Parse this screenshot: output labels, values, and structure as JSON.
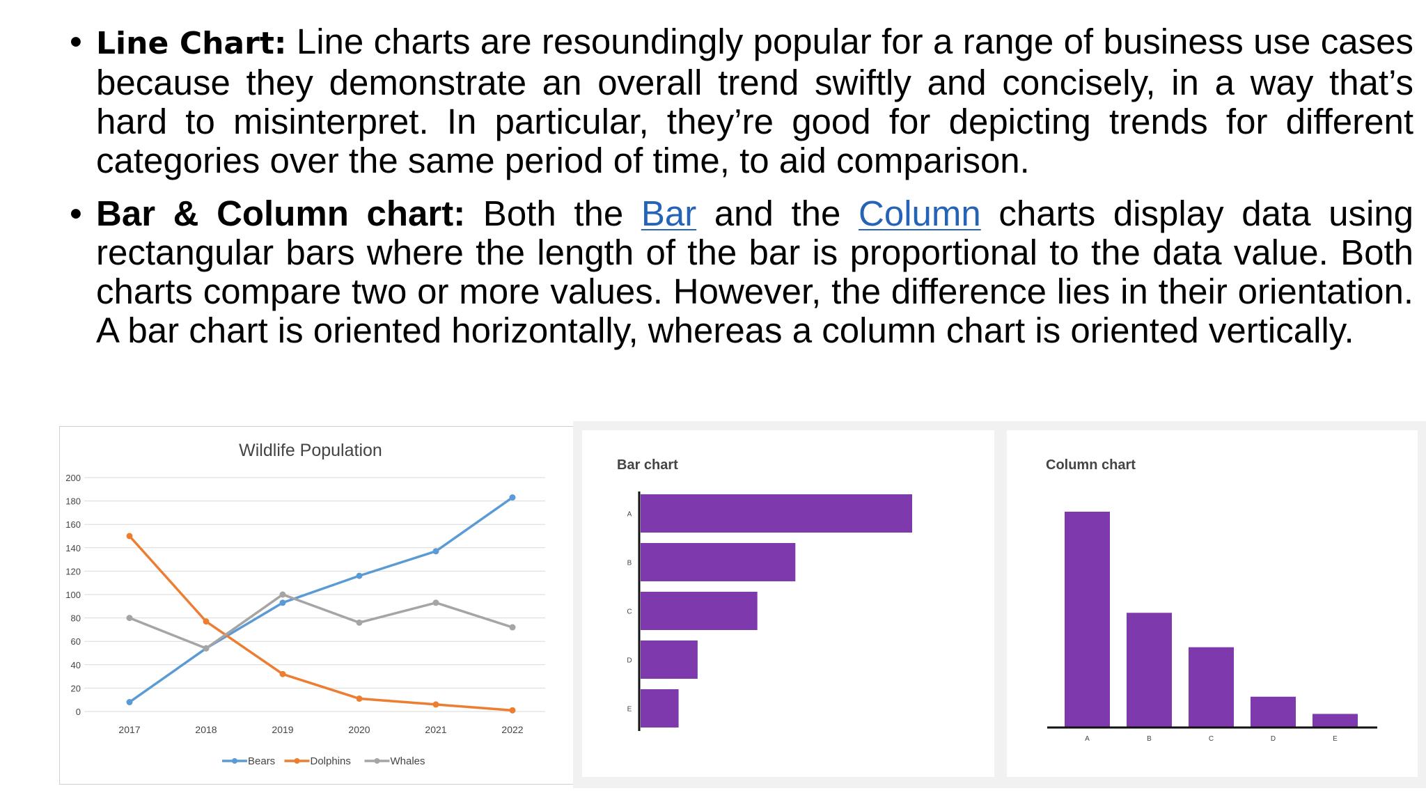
{
  "bullets": [
    {
      "term": "Line Chart:",
      "text": "Line charts are resoundingly popular for a range of business use cases because they demonstrate an overall trend swiftly and concisely, in a way that’s hard to misinterpret. In particular, they’re good for depicting trends for different categories over the same period of time, to aid comparison."
    },
    {
      "term": "Bar & Column chart:",
      "text_before": "Both the",
      "link_bar": "Bar",
      "text_middle": "and the",
      "link_column": "Column",
      "text_after": "charts display data using rectangular bars where the length of the bar is proportional to the data value. Both charts compare two or more values. However, the difference lies in their orientation. A bar chart is oriented horizontally, whereas a column chart is oriented vertically."
    }
  ],
  "bullet_symbol": "•",
  "colors": {
    "bears": "#5b9bd5",
    "dolphins": "#ed7d31",
    "whales": "#a5a5a5",
    "purple": "#7e3aad",
    "link": "#2563b8"
  },
  "chart_data": [
    {
      "type": "line",
      "title": "Wildlife Population",
      "x": [
        "2017",
        "2018",
        "2019",
        "2020",
        "2021",
        "2022"
      ],
      "ylim": [
        0,
        200
      ],
      "yticks": [
        0,
        20,
        40,
        60,
        80,
        100,
        120,
        140,
        160,
        180,
        200
      ],
      "grid": true,
      "legend": "bottom",
      "series": [
        {
          "name": "Bears",
          "values": [
            8,
            54,
            93,
            116,
            137,
            183
          ]
        },
        {
          "name": "Dolphins",
          "values": [
            150,
            77,
            32,
            11,
            6,
            1
          ]
        },
        {
          "name": "Whales",
          "values": [
            80,
            54,
            100,
            76,
            93,
            72
          ]
        }
      ]
    },
    {
      "type": "bar",
      "orientation": "horizontal",
      "title": "Bar chart",
      "categories": [
        "A",
        "B",
        "C",
        "D",
        "E"
      ],
      "values": [
        100,
        57,
        43,
        21,
        14
      ]
    },
    {
      "type": "bar",
      "orientation": "vertical",
      "title": "Column chart",
      "categories": [
        "A",
        "B",
        "C",
        "D",
        "E"
      ],
      "values": [
        100,
        53,
        37,
        14,
        6
      ]
    }
  ]
}
